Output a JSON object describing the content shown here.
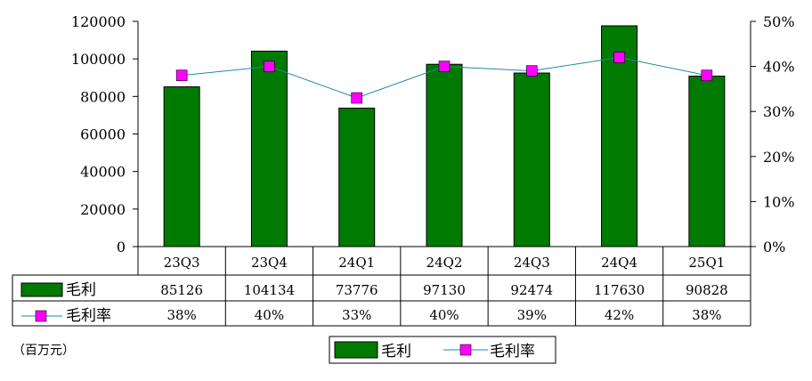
{
  "chart_data": {
    "type": "bar",
    "categories": [
      "23Q3",
      "23Q4",
      "24Q1",
      "24Q2",
      "24Q3",
      "24Q4",
      "25Q1"
    ],
    "series": [
      {
        "name": "毛利",
        "type": "bar",
        "axis": "left",
        "color": "#007a00",
        "values": [
          85126,
          104134,
          73776,
          97130,
          92474,
          117630,
          90828
        ]
      },
      {
        "name": "毛利率",
        "type": "line",
        "axis": "right",
        "color": "#ff00ff",
        "line_color": "#1f88a8",
        "values": [
          0.38,
          0.4,
          0.33,
          0.4,
          0.39,
          0.42,
          0.38
        ],
        "labels": [
          "38%",
          "40%",
          "33%",
          "40%",
          "39%",
          "42%",
          "38%"
        ]
      }
    ],
    "value_labels": [
      "85126",
      "104134",
      "73776",
      "97130",
      "92474",
      "117630",
      "90828"
    ],
    "ylim": [
      0,
      120000
    ],
    "y_ticks": [
      "0",
      "20000",
      "40000",
      "60000",
      "80000",
      "100000",
      "120000"
    ],
    "y2lim": [
      0,
      0.5
    ],
    "y2_ticks": [
      "0%",
      "10%",
      "20%",
      "30%",
      "40%",
      "50%"
    ],
    "unit": "（百万元）",
    "legend": {
      "position": "bottom",
      "items": [
        "毛利",
        "毛利率"
      ]
    },
    "data_table": true,
    "grid": false
  }
}
